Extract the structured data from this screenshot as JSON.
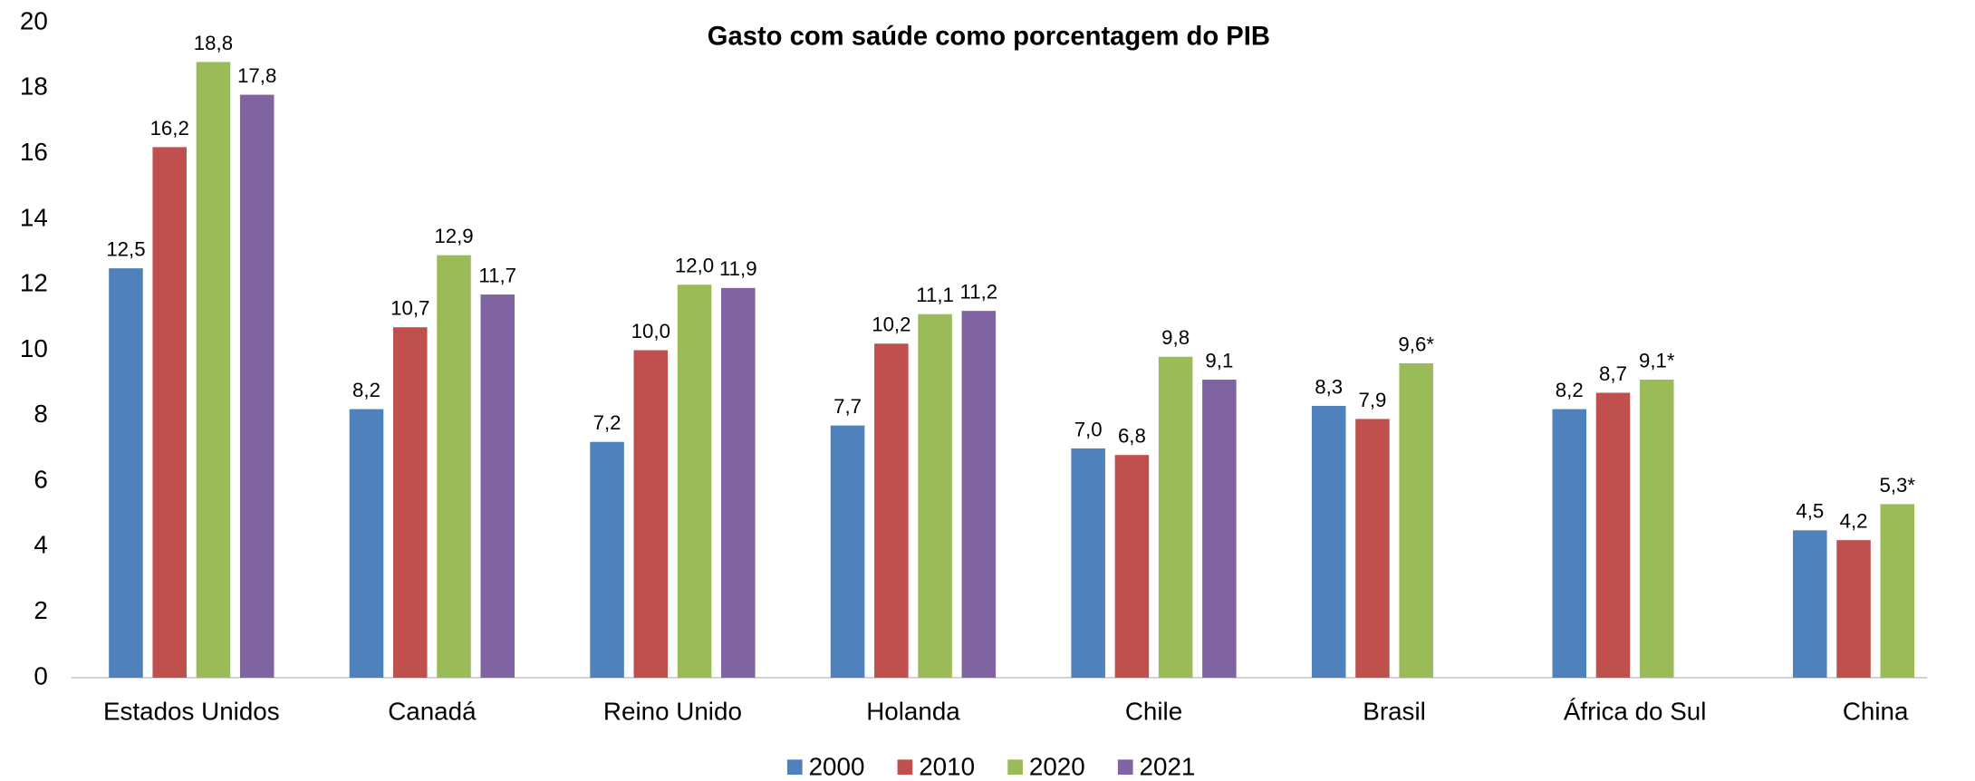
{
  "chart_data": {
    "type": "bar",
    "title": "Gasto com saúde como porcentagem do PIB",
    "categories": [
      "Estados Unidos",
      "Canadá",
      "Reino Unido",
      "Holanda",
      "Chile",
      "Brasil",
      "África do Sul",
      "China"
    ],
    "series": [
      {
        "name": "2000",
        "color": "#4f81bd",
        "values": [
          12.5,
          8.2,
          7.2,
          7.7,
          7.0,
          8.3,
          8.2,
          4.5
        ],
        "value_labels": [
          "12,5",
          "8,2",
          "7,2",
          "7,7",
          "7,0",
          "8,3",
          "8,2",
          "4,5"
        ]
      },
      {
        "name": "2010",
        "color": "#c0504d",
        "values": [
          16.2,
          10.7,
          10.0,
          10.2,
          6.8,
          7.9,
          8.7,
          4.2
        ],
        "value_labels": [
          "16,2",
          "10,7",
          "10,0",
          "10,2",
          "6,8",
          "7,9",
          "8,7",
          "4,2"
        ]
      },
      {
        "name": "2020",
        "color": "#9bbb59",
        "values": [
          18.8,
          12.9,
          12.0,
          11.1,
          9.8,
          9.6,
          9.1,
          5.3
        ],
        "value_labels": [
          "18,8",
          "12,9",
          "12,0",
          "11,1",
          "9,8",
          "9,6*",
          "9,1*",
          "5,3*"
        ]
      },
      {
        "name": "2021",
        "color": "#8064a2",
        "values": [
          17.8,
          11.7,
          11.9,
          11.2,
          9.1,
          null,
          null,
          null
        ],
        "value_labels": [
          "17,8",
          "11,7",
          "11,9",
          "11,2",
          "9,1",
          null,
          null,
          null
        ]
      }
    ],
    "ylim": [
      0,
      20
    ],
    "yticks": [
      0,
      2,
      4,
      6,
      8,
      10,
      12,
      14,
      16,
      18,
      20
    ],
    "grid": false,
    "legend": "bottom"
  }
}
